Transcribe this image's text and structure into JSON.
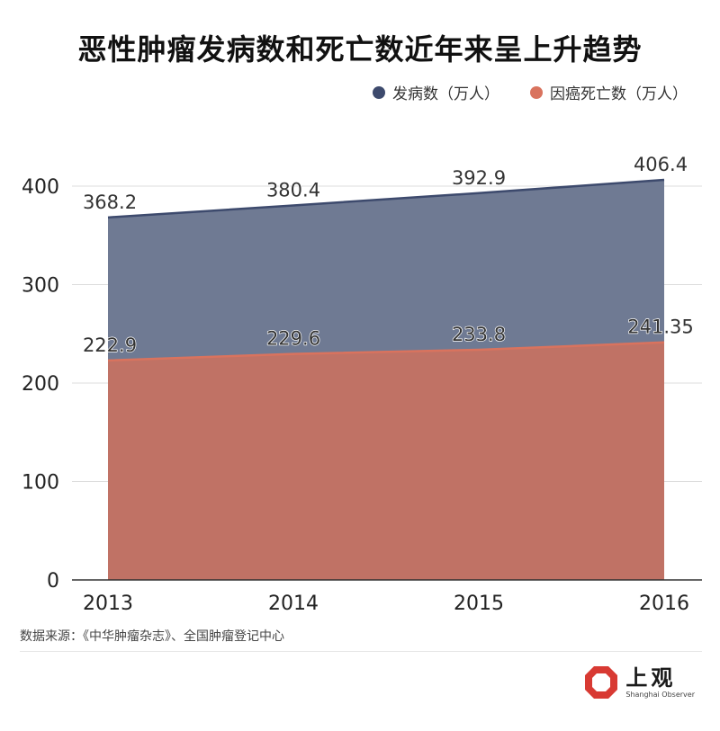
{
  "title": "恶性肿瘤发病数和死亡数近年来呈上升趋势",
  "source": "数据来源：《中华肿瘤杂志》、全国肿瘤登记中心",
  "brand": {
    "cn": "上观",
    "en": "Shanghai Observer",
    "icon": "octagon-logo-icon"
  },
  "colors": {
    "incidence": "#3d4a6d",
    "incidence_fill": "#6f7a93",
    "deaths": "#d9735e",
    "deaths_fill": "#c07265",
    "grid": "#dddddd",
    "brand": "#d83a33"
  },
  "chart_data": {
    "type": "area",
    "categories": [
      "2013",
      "2014",
      "2015",
      "2016"
    ],
    "series": [
      {
        "name": "发病数（万人）",
        "values": [
          368.2,
          380.4,
          392.9,
          406.4
        ],
        "labels": [
          "368.2",
          "380.4",
          "392.9",
          "406.4"
        ]
      },
      {
        "name": "因癌死亡数（万人）",
        "values": [
          222.9,
          229.6,
          233.8,
          241.35
        ],
        "labels": [
          "222.9",
          "229.6",
          "233.8",
          "241.35"
        ]
      }
    ],
    "yticks": [
      0,
      100,
      200,
      300,
      400
    ],
    "ylim": [
      0,
      400
    ],
    "grid": true,
    "legend": "top-right"
  }
}
